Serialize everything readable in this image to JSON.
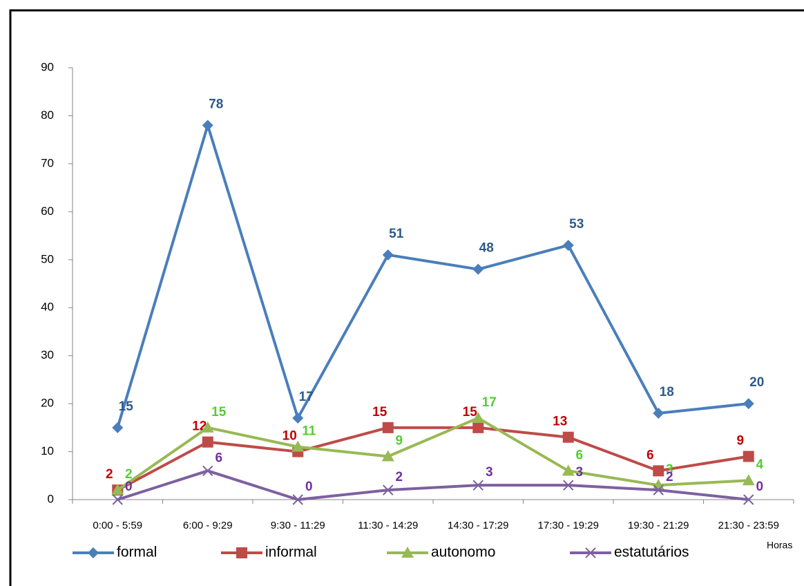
{
  "chart_data": {
    "type": "line",
    "categories": [
      "0:00 - 5:59",
      "6:00 - 9:29",
      "9:30 - 11:29",
      "11:30 - 14:29",
      "14:30 - 17:29",
      "17:30 - 19:29",
      "19:30 - 21:29",
      "21:30 - 23:59"
    ],
    "x_label": "Horas",
    "series": [
      {
        "name": "formal",
        "color": "#4a7ebb",
        "label_color": "#2e5a8a",
        "marker": "diamond",
        "values": [
          15,
          78,
          17,
          51,
          48,
          53,
          18,
          20
        ]
      },
      {
        "name": "informal",
        "color": "#be4b48",
        "label_color": "#c00000",
        "marker": "square",
        "values": [
          2,
          12,
          10,
          15,
          15,
          13,
          6,
          9
        ]
      },
      {
        "name": "autonomo",
        "color": "#98b954",
        "label_color": "#55cc33",
        "marker": "triangle",
        "values": [
          2,
          15,
          11,
          9,
          17,
          6,
          3,
          4
        ]
      },
      {
        "name": "estatutários",
        "color": "#7d60a0",
        "label_color": "#7030a0",
        "marker": "x",
        "values": [
          0,
          6,
          0,
          2,
          3,
          3,
          2,
          0
        ]
      }
    ],
    "ylim": [
      0,
      90
    ],
    "yticks": [
      0,
      10,
      20,
      30,
      40,
      50,
      60,
      70,
      80,
      90
    ],
    "grid": false,
    "legend": "bottom"
  }
}
